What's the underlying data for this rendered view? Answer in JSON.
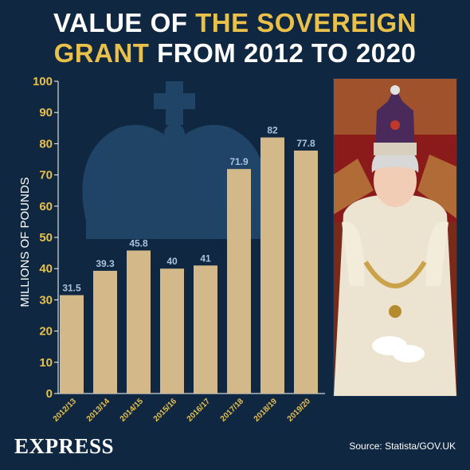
{
  "header": {
    "title_part1": "VALUE OF ",
    "title_part2": "THE SOVEREIGN",
    "title_part3": "GRANT",
    "title_part4": " FROM 2012 TO 2020"
  },
  "footer": {
    "brand": "EXPRESS",
    "source": "Source: Statista/GOV.UK"
  },
  "colors": {
    "background": "#0f2740",
    "bar": "#d3b98a",
    "highlight": "#e8c04a",
    "tick_label": "#e8c04a",
    "value_label": "#a9c3dc",
    "crown_watermark": "#2d5c86"
  },
  "chart_data": {
    "type": "bar",
    "ylabel": "MILLIONS OF POUNDS",
    "xlabel": "",
    "ylim": [
      0,
      100
    ],
    "yticks": [
      0,
      10,
      20,
      30,
      40,
      50,
      60,
      70,
      80,
      90,
      100
    ],
    "grid": false,
    "categories": [
      "2012/13",
      "2013/14",
      "2014/15",
      "2015/16",
      "2016/17",
      "2017/18",
      "2018/19",
      "2019/20"
    ],
    "values": [
      31.5,
      39.3,
      45.8,
      40,
      41,
      71.9,
      82,
      77.8
    ],
    "value_labels": [
      "31.5",
      "39.3",
      "45.8",
      "40",
      "41",
      "71.9",
      "82",
      "77.8"
    ]
  }
}
